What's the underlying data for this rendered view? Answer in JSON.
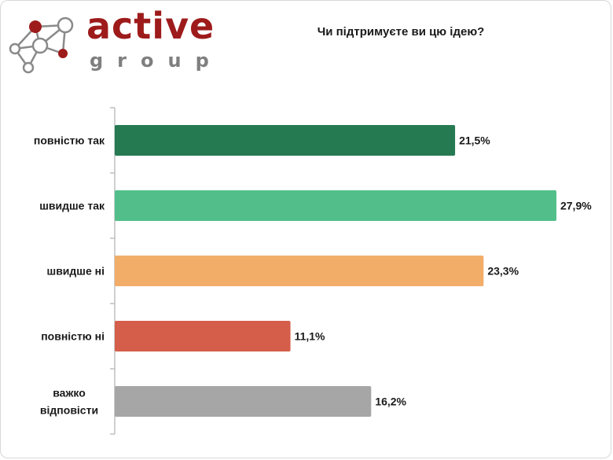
{
  "logo": {
    "brand_name": "active",
    "brand_sub": "group",
    "icon": "molecule-network-logo",
    "colors": {
      "brand": "#9e1b1b",
      "sub": "#7f7f7f"
    }
  },
  "chart_data": {
    "type": "bar",
    "orientation": "horizontal",
    "title": "Чи підтримуєте ви цю ідею?",
    "categories": [
      "повністю так",
      "швидше так",
      "швидше ні",
      "повністю ні",
      "важко відповісти"
    ],
    "values": [
      21.5,
      27.9,
      23.3,
      11.1,
      16.2
    ],
    "value_labels": [
      "21,5%",
      "27,9%",
      "23,3%",
      "11,1%",
      "16,2%"
    ],
    "colors": [
      "#267a52",
      "#52bf8a",
      "#f2ad68",
      "#d45e4a",
      "#a6a6a6"
    ],
    "xlim": [
      0,
      28
    ],
    "grid": false,
    "legend": "none",
    "unit": "%"
  }
}
